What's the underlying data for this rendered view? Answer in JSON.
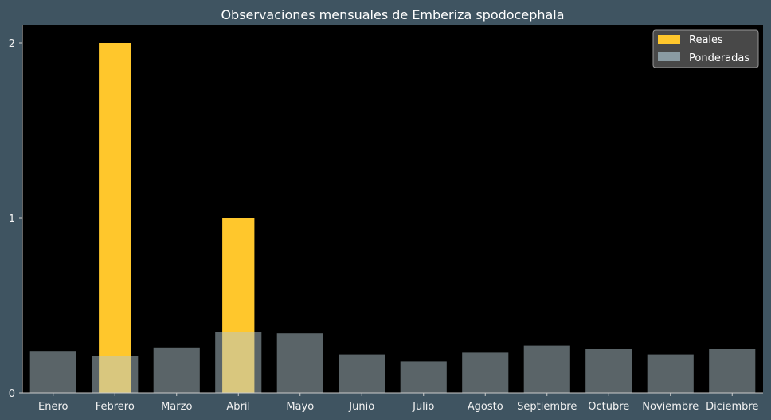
{
  "chart_data": {
    "type": "bar",
    "title": "Observaciones mensuales de Emberiza spodocephala",
    "xlabel": "",
    "ylabel": "",
    "categories": [
      "Enero",
      "Febrero",
      "Marzo",
      "Abril",
      "Mayo",
      "Junio",
      "Julio",
      "Agosto",
      "Septiembre",
      "Octubre",
      "Noviembre",
      "Diciembre"
    ],
    "series": [
      {
        "name": "Reales",
        "color": "#ffc72c",
        "values": [
          0,
          2,
          0,
          1,
          0,
          0,
          0,
          0,
          0,
          0,
          0,
          0
        ]
      },
      {
        "name": "Ponderadas",
        "color": "#b4c7cf",
        "opacity": 0.5,
        "values": [
          0.24,
          0.21,
          0.26,
          0.35,
          0.34,
          0.22,
          0.18,
          0.23,
          0.27,
          0.25,
          0.22,
          0.25
        ]
      }
    ],
    "ylim": [
      0,
      2.1
    ],
    "yticks": [
      "0",
      "1",
      "2"
    ],
    "grid": false,
    "legend": "top-right",
    "colors": {
      "background": "#3f5461",
      "plot_background": "#000000",
      "text": "#ffffff"
    }
  }
}
